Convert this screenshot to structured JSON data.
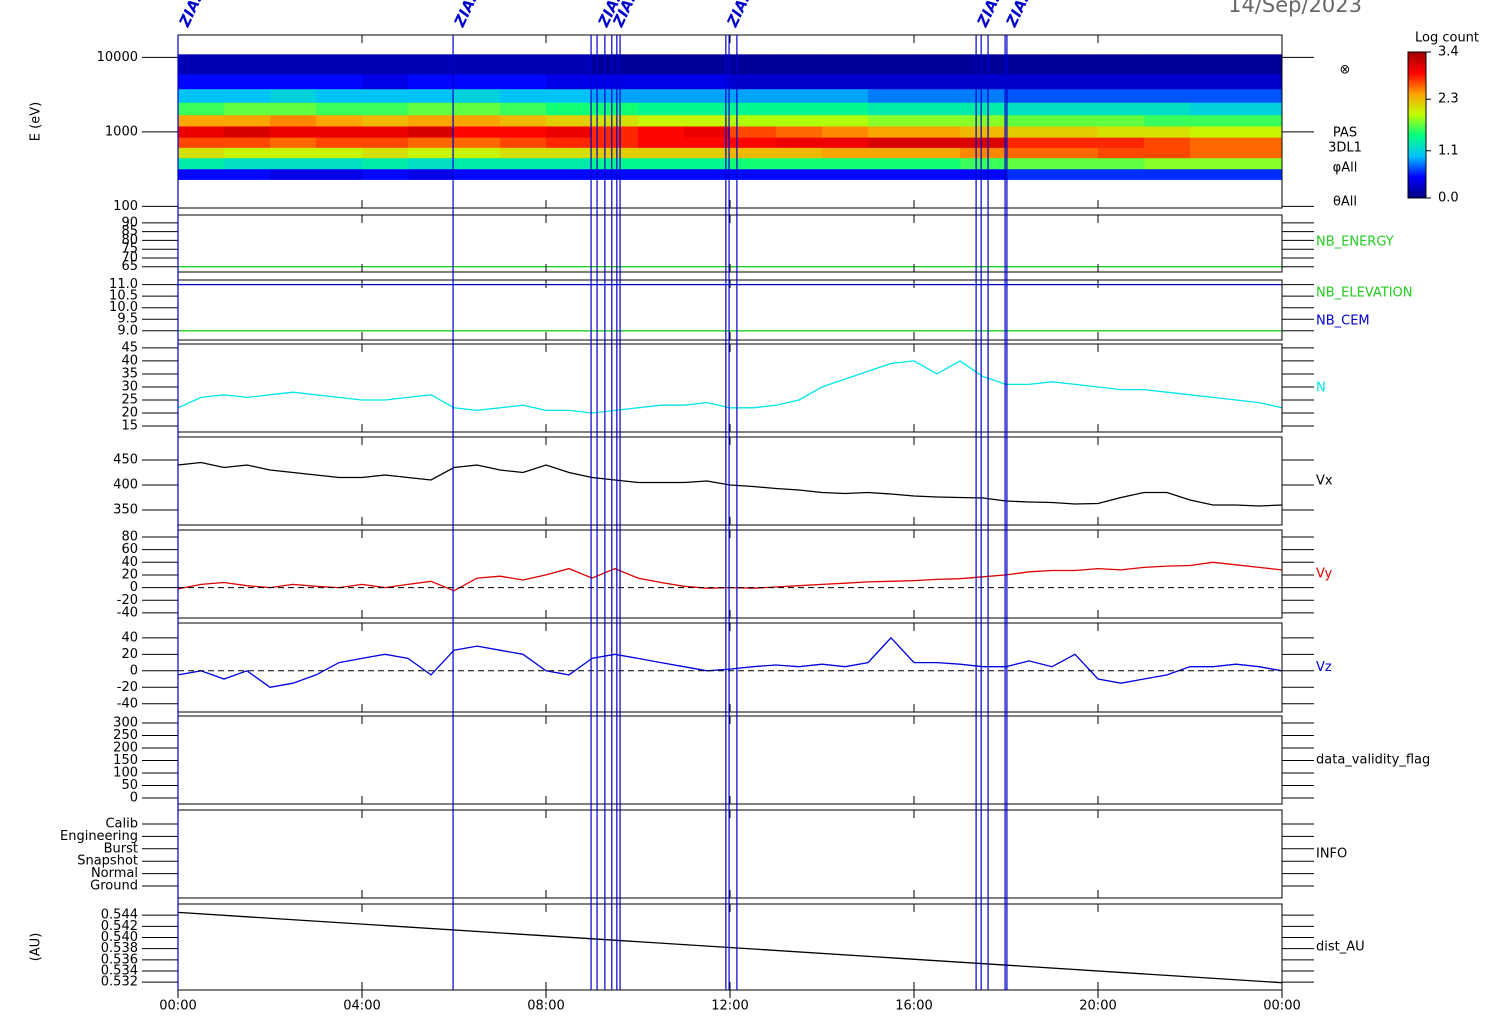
{
  "chart_data": [
    {
      "type": "heatmap",
      "title": "14/Sep/2023",
      "ylabel": "E (eV)",
      "ylog": true,
      "ylim": [
        95,
        20000
      ],
      "yticks": [
        100,
        1000,
        10000
      ],
      "xlim": [
        0,
        24
      ],
      "x_bins": [
        0,
        1,
        2,
        3,
        4,
        5,
        6,
        7,
        8,
        9,
        10,
        11,
        12,
        13,
        14,
        15,
        16,
        17,
        18,
        19,
        20,
        21,
        22,
        23,
        24
      ],
      "y_bins": [
        230,
        320,
        450,
        620,
        850,
        1200,
        1700,
        2500,
        3800,
        6000,
        11000
      ],
      "z": [
        [
          0.5,
          1.3,
          2.1,
          2.7,
          3.0,
          2.4,
          1.6,
          1.0,
          0.5,
          0.2
        ],
        [
          0.5,
          1.2,
          2.0,
          2.7,
          3.1,
          2.4,
          1.7,
          1.0,
          0.5,
          0.2
        ],
        [
          0.4,
          1.2,
          2.0,
          2.6,
          3.0,
          2.5,
          1.7,
          1.1,
          0.5,
          0.2
        ],
        [
          0.4,
          1.2,
          2.0,
          2.7,
          3.0,
          2.4,
          1.6,
          1.0,
          0.5,
          0.2
        ],
        [
          0.5,
          1.3,
          2.1,
          2.7,
          3.0,
          2.3,
          1.6,
          1.0,
          0.4,
          0.2
        ],
        [
          0.4,
          1.2,
          2.0,
          2.6,
          3.1,
          2.4,
          1.7,
          1.0,
          0.5,
          0.2
        ],
        [
          0.5,
          1.3,
          2.0,
          2.6,
          2.9,
          2.4,
          1.7,
          1.1,
          0.5,
          0.2
        ],
        [
          0.5,
          1.3,
          2.1,
          2.7,
          2.9,
          2.3,
          1.6,
          1.0,
          0.5,
          0.2
        ],
        [
          0.5,
          1.3,
          2.1,
          2.8,
          3.0,
          2.2,
          1.5,
          1.0,
          0.4,
          0.2
        ],
        [
          0.5,
          1.4,
          2.2,
          2.8,
          2.8,
          2.1,
          1.5,
          0.9,
          0.4,
          0.1
        ],
        [
          0.5,
          1.4,
          2.2,
          2.9,
          2.9,
          2.0,
          1.4,
          0.9,
          0.4,
          0.1
        ],
        [
          0.5,
          1.4,
          2.2,
          2.9,
          3.0,
          2.0,
          1.4,
          0.9,
          0.4,
          0.1
        ],
        [
          0.5,
          1.5,
          2.3,
          2.9,
          2.7,
          1.9,
          1.4,
          0.9,
          0.3,
          0.1
        ],
        [
          0.5,
          1.5,
          2.3,
          3.0,
          2.6,
          1.9,
          1.4,
          0.9,
          0.3,
          0.1
        ],
        [
          0.5,
          1.5,
          2.4,
          3.0,
          2.5,
          1.9,
          1.4,
          0.9,
          0.3,
          0.1
        ],
        [
          0.5,
          1.5,
          2.4,
          3.1,
          2.4,
          1.8,
          1.3,
          0.8,
          0.3,
          0.1
        ],
        [
          0.5,
          1.5,
          2.4,
          3.1,
          2.4,
          1.8,
          1.3,
          0.8,
          0.3,
          0.1
        ],
        [
          0.5,
          1.6,
          2.5,
          3.1,
          2.3,
          1.8,
          1.3,
          0.8,
          0.3,
          0.1
        ],
        [
          0.6,
          1.7,
          2.6,
          2.8,
          2.2,
          1.7,
          1.2,
          0.7,
          0.3,
          0.1
        ],
        [
          0.6,
          1.7,
          2.6,
          2.8,
          2.2,
          1.7,
          1.2,
          0.7,
          0.3,
          0.1
        ],
        [
          0.6,
          1.7,
          2.7,
          2.8,
          2.1,
          1.7,
          1.2,
          0.7,
          0.3,
          0.1
        ],
        [
          0.6,
          1.8,
          2.7,
          2.7,
          2.1,
          1.6,
          1.2,
          0.7,
          0.3,
          0.1
        ],
        [
          0.6,
          1.8,
          2.6,
          2.6,
          2.0,
          1.6,
          1.1,
          0.7,
          0.3,
          0.1
        ],
        [
          0.6,
          1.8,
          2.6,
          2.6,
          2.0,
          1.6,
          1.1,
          0.7,
          0.3,
          0.1
        ]
      ],
      "clim": [
        0,
        3.4
      ],
      "colormap": [
        "#00007f",
        "#0000ff",
        "#00c0ff",
        "#00ff80",
        "#c0ff00",
        "#ffa000",
        "#ff0000",
        "#a00000"
      ],
      "colorbar_label": "Log count",
      "colorbar_ticks": [
        {
          "value": 0,
          "label": "0.0"
        },
        1.1,
        2.3,
        3.4
      ],
      "side_labels": [
        "⊗",
        "PAS",
        "3DL1",
        "φAll",
        "θAll"
      ],
      "event_color": "#0000cc",
      "event_lines": [
        0,
        5.98,
        8.98,
        9.11,
        9.28,
        9.43,
        9.54,
        9.61,
        11.91,
        11.98,
        12.15,
        17.35,
        17.46,
        17.61,
        17.98,
        18.02
      ],
      "event_labels": [
        {
          "x": 0,
          "label": "ZIAS"
        },
        {
          "x": 5.98,
          "label": "ZIAS"
        },
        {
          "x": 9.11,
          "label": "ZIAS"
        },
        {
          "x": 9.43,
          "label": "ZIAS"
        },
        {
          "x": 11.91,
          "label": "ZIAS"
        },
        {
          "x": 17.35,
          "label": "ZIAS"
        },
        {
          "x": 17.98,
          "label": "ZIAS"
        }
      ]
    },
    {
      "type": "line",
      "ylim": [
        62,
        94.5
      ],
      "yticks": [
        65,
        70,
        75,
        80,
        85,
        90
      ],
      "xlim": [
        0,
        24
      ],
      "x": [
        0,
        24
      ],
      "series": [
        {
          "name": "NB_ENERGY",
          "color": "#22cc22",
          "values": [
            65,
            65
          ]
        }
      ]
    },
    {
      "type": "line",
      "ylim": [
        8.6,
        11.2
      ],
      "yticks": [
        {
          "value": 9,
          "label": "9.0"
        },
        9.5,
        {
          "value": 10,
          "label": "10.0"
        },
        10.5,
        {
          "value": 11,
          "label": "11.0"
        }
      ],
      "xlim": [
        0,
        24
      ],
      "x": [
        0,
        24
      ],
      "series": [
        {
          "name": "NB_ELEVATION",
          "color": "#22cc22",
          "values": [
            9,
            9
          ]
        },
        {
          "name": "NB_CEM",
          "color": "#0000cc",
          "values": [
            11,
            11
          ]
        }
      ]
    },
    {
      "type": "line",
      "ylim": [
        12.7,
        46.5
      ],
      "yticks": [
        15,
        20,
        25,
        30,
        35,
        40,
        45
      ],
      "xlim": [
        0,
        24
      ],
      "x": [
        0,
        0.5,
        1,
        1.5,
        2,
        2.5,
        3,
        3.5,
        4,
        4.5,
        5,
        5.5,
        6,
        6.5,
        7,
        7.5,
        8,
        8.5,
        9,
        9.5,
        10,
        10.5,
        11,
        11.5,
        12,
        12.5,
        13,
        13.5,
        14,
        14.5,
        15,
        15.5,
        16,
        16.5,
        17,
        17.5,
        18,
        18.5,
        19,
        19.5,
        20,
        20.5,
        21,
        21.5,
        22,
        22.5,
        23,
        23.5,
        24
      ],
      "series": [
        {
          "name": "N",
          "color": "#00e5ee",
          "values": [
            22,
            26,
            27,
            26,
            27,
            28,
            27,
            26,
            25,
            25,
            26,
            27,
            22,
            21,
            22,
            23,
            21,
            21,
            20,
            21,
            22,
            23,
            23,
            24,
            22,
            22,
            23,
            25,
            30,
            33,
            36,
            39,
            40,
            35,
            40,
            34,
            31,
            31,
            32,
            31,
            30,
            29,
            29,
            28,
            27,
            26,
            25,
            24,
            22
          ]
        }
      ]
    },
    {
      "type": "line",
      "ylim": [
        320,
        496
      ],
      "yticks": [
        350,
        400,
        450
      ],
      "xlim": [
        0,
        24
      ],
      "x": [
        0,
        0.5,
        1,
        1.5,
        2,
        2.5,
        3,
        3.5,
        4,
        4.5,
        5,
        5.5,
        6,
        6.5,
        7,
        7.5,
        8,
        8.5,
        9,
        9.5,
        10,
        10.5,
        11,
        11.5,
        12,
        12.5,
        13,
        13.5,
        14,
        14.5,
        15,
        15.5,
        16,
        16.5,
        17,
        17.5,
        18,
        18.5,
        19,
        19.5,
        20,
        20.5,
        21,
        21.5,
        22,
        22.5,
        23,
        23.5,
        24
      ],
      "series": [
        {
          "name": "Vx",
          "color": "#000000",
          "values": [
            440,
            445,
            435,
            440,
            430,
            425,
            420,
            415,
            415,
            420,
            415,
            410,
            435,
            440,
            430,
            425,
            440,
            425,
            415,
            410,
            405,
            405,
            405,
            408,
            400,
            397,
            393,
            390,
            385,
            383,
            385,
            382,
            378,
            376,
            375,
            374,
            368,
            366,
            365,
            362,
            363,
            375,
            385,
            385,
            370,
            360,
            360,
            358,
            360
          ]
        }
      ]
    },
    {
      "type": "line",
      "ylim": [
        -48,
        91
      ],
      "yticks": [
        -40,
        -20,
        0,
        20,
        40,
        60,
        80
      ],
      "zero_line": true,
      "xlim": [
        0,
        24
      ],
      "x": [
        0,
        0.5,
        1,
        1.5,
        2,
        2.5,
        3,
        3.5,
        4,
        4.5,
        5,
        5.5,
        6,
        6.5,
        7,
        7.5,
        8,
        8.5,
        9,
        9.5,
        10,
        10.5,
        11,
        11.5,
        12,
        12.5,
        13,
        13.5,
        14,
        14.5,
        15,
        15.5,
        16,
        16.5,
        17,
        17.5,
        18,
        18.5,
        19,
        19.5,
        20,
        20.5,
        21,
        21.5,
        22,
        22.5,
        23,
        23.5,
        24
      ],
      "series": [
        {
          "name": "Vy",
          "color": "#e00000",
          "values": [
            -2,
            5,
            8,
            3,
            0,
            5,
            2,
            0,
            5,
            0,
            5,
            10,
            -5,
            15,
            18,
            12,
            20,
            30,
            15,
            30,
            15,
            8,
            2,
            -1,
            0,
            -1,
            1,
            3,
            5,
            7,
            9,
            10,
            11,
            13,
            14,
            17,
            20,
            25,
            27,
            27,
            30,
            28,
            32,
            34,
            35,
            40,
            36,
            32,
            28
          ]
        }
      ]
    },
    {
      "type": "line",
      "ylim": [
        -50,
        58
      ],
      "yticks": [
        -40,
        -20,
        0,
        20,
        40
      ],
      "zero_line": true,
      "xlim": [
        0,
        24
      ],
      "x": [
        0,
        0.5,
        1,
        1.5,
        2,
        2.5,
        3,
        3.5,
        4,
        4.5,
        5,
        5.5,
        6,
        6.5,
        7,
        7.5,
        8,
        8.5,
        9,
        9.5,
        10,
        10.5,
        11,
        11.5,
        12,
        12.5,
        13,
        13.5,
        14,
        14.5,
        15,
        15.5,
        16,
        16.5,
        17,
        17.5,
        18,
        18.5,
        19,
        19.5,
        20,
        20.5,
        21,
        21.5,
        22,
        22.5,
        23,
        23.5,
        24
      ],
      "series": [
        {
          "name": "Vz",
          "color": "#0000e0",
          "values": [
            -5,
            0,
            -10,
            0,
            -20,
            -15,
            -5,
            10,
            15,
            20,
            15,
            -5,
            25,
            30,
            25,
            20,
            0,
            -5,
            15,
            20,
            15,
            10,
            5,
            0,
            2,
            5,
            7,
            5,
            8,
            5,
            10,
            40,
            10,
            10,
            8,
            5,
            5,
            12,
            5,
            20,
            -10,
            -15,
            -10,
            -5,
            5,
            5,
            8,
            5,
            0
          ]
        }
      ]
    },
    {
      "type": "line",
      "label": "data_validity_flag",
      "ylim": [
        -24,
        328
      ],
      "yticks": [
        0,
        50,
        100,
        150,
        200,
        250,
        300
      ],
      "xlim": [
        0,
        24
      ]
    },
    {
      "type": "category",
      "label": "INFO",
      "categories": [
        "Calib",
        "Engineering",
        "Burst",
        "Snapshot",
        "Normal",
        "Ground"
      ]
    },
    {
      "type": "line",
      "ylabel": "(AU)",
      "ylim": [
        0.5306,
        0.546
      ],
      "yticks": [
        0.532,
        0.534,
        0.536,
        0.538,
        {
          "value": 0.54,
          "label": "0.540"
        },
        0.542,
        0.544
      ],
      "xlim": [
        0,
        24
      ],
      "xticks": [
        {
          "value": 0,
          "label": "00:00"
        },
        {
          "value": 4,
          "label": "04:00"
        },
        {
          "value": 8,
          "label": "08:00"
        },
        {
          "value": 12,
          "label": "12:00"
        },
        {
          "value": 16,
          "label": "16:00"
        },
        {
          "value": 20,
          "label": "20:00"
        },
        {
          "value": 24,
          "label": "00:00"
        }
      ],
      "x": [
        0,
        24
      ],
      "series": [
        {
          "name": "dist_AU",
          "color": "#000000",
          "values": [
            0.5445,
            0.5319
          ]
        }
      ]
    }
  ]
}
